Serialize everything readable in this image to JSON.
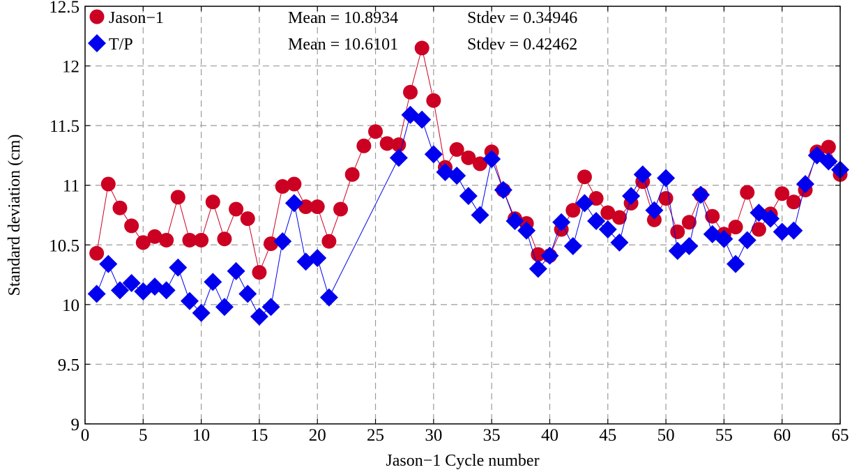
{
  "chart_data": {
    "type": "scatter",
    "xlabel": "Jason−1 Cycle number",
    "ylabel": "Standard deviation (cm)",
    "xlim": [
      0,
      65
    ],
    "ylim": [
      9,
      12.5
    ],
    "xticks": [
      0,
      5,
      10,
      15,
      20,
      25,
      30,
      35,
      40,
      45,
      50,
      55,
      60,
      65
    ],
    "yticks": [
      9,
      9.5,
      10,
      10.5,
      11,
      11.5,
      12,
      12.5
    ],
    "x_tick_labels": [
      "0",
      "5",
      "10",
      "15",
      "20",
      "25",
      "30",
      "35",
      "40",
      "45",
      "50",
      "55",
      "60",
      "65"
    ],
    "y_tick_labels": [
      "9",
      "9.5",
      "10",
      "10.5",
      "11",
      "11.5",
      "12",
      "12.5"
    ],
    "grid": true,
    "legend_position": "top-left",
    "series": [
      {
        "name": "Jason−1",
        "marker": "circle",
        "color": "#cc0022",
        "mean_label": "Mean = 10.8934",
        "stdev_label": "Stdev = 0.34946",
        "x": [
          1,
          2,
          3,
          4,
          5,
          6,
          7,
          8,
          9,
          10,
          11,
          12,
          13,
          14,
          15,
          16,
          17,
          18,
          19,
          20,
          21,
          22,
          23,
          24,
          25,
          26,
          27,
          28,
          29,
          30,
          31,
          32,
          33,
          34,
          35,
          36,
          37,
          38,
          39,
          40,
          41,
          42,
          43,
          44,
          45,
          46,
          47,
          48,
          49,
          50,
          51,
          52,
          53,
          54,
          55,
          56,
          57,
          58,
          59,
          60,
          61,
          62,
          63,
          64,
          65
        ],
        "values": [
          10.43,
          11.01,
          10.81,
          10.66,
          10.52,
          10.57,
          10.54,
          10.9,
          10.54,
          10.54,
          10.86,
          10.55,
          10.8,
          10.72,
          10.27,
          10.51,
          10.99,
          11.01,
          10.82,
          10.82,
          10.53,
          10.8,
          11.09,
          11.33,
          11.45,
          11.35,
          11.34,
          11.78,
          12.15,
          11.71,
          11.15,
          11.3,
          11.23,
          11.18,
          11.28,
          10.96,
          10.72,
          10.68,
          10.42,
          10.41,
          10.63,
          10.79,
          11.07,
          10.89,
          10.77,
          10.73,
          10.85,
          11.03,
          10.71,
          10.89,
          10.61,
          10.69,
          10.92,
          10.74,
          10.59,
          10.65,
          10.94,
          10.63,
          10.76,
          10.93,
          10.86,
          10.96,
          11.28,
          11.32,
          11.09
        ]
      },
      {
        "name": "T/P",
        "marker": "diamond",
        "color": "#0000ee",
        "mean_label": "Mean = 10.6101",
        "stdev_label": "Stdev = 0.42462",
        "x": [
          1,
          2,
          3,
          4,
          5,
          6,
          7,
          8,
          9,
          10,
          11,
          12,
          13,
          14,
          15,
          16,
          17,
          18,
          19,
          20,
          21,
          27,
          28,
          29,
          30,
          31,
          32,
          33,
          34,
          35,
          36,
          37,
          38,
          39,
          40,
          41,
          42,
          43,
          44,
          45,
          46,
          47,
          48,
          49,
          50,
          51,
          52,
          53,
          54,
          55,
          56,
          57,
          58,
          59,
          60,
          61,
          62,
          63,
          64,
          65
        ],
        "values": [
          10.09,
          10.34,
          10.12,
          10.18,
          10.11,
          10.15,
          10.12,
          10.31,
          10.03,
          9.93,
          10.19,
          9.98,
          10.28,
          10.09,
          9.9,
          9.98,
          10.53,
          10.85,
          10.36,
          10.39,
          10.06,
          11.23,
          11.59,
          11.55,
          11.26,
          11.11,
          11.08,
          10.91,
          10.75,
          11.22,
          10.96,
          10.7,
          10.62,
          10.3,
          10.41,
          10.69,
          10.49,
          10.85,
          10.7,
          10.63,
          10.52,
          10.91,
          11.09,
          10.79,
          11.06,
          10.45,
          10.49,
          10.92,
          10.59,
          10.55,
          10.34,
          10.54,
          10.77,
          10.72,
          10.61,
          10.62,
          11.01,
          11.25,
          11.2,
          11.13
        ]
      }
    ]
  }
}
